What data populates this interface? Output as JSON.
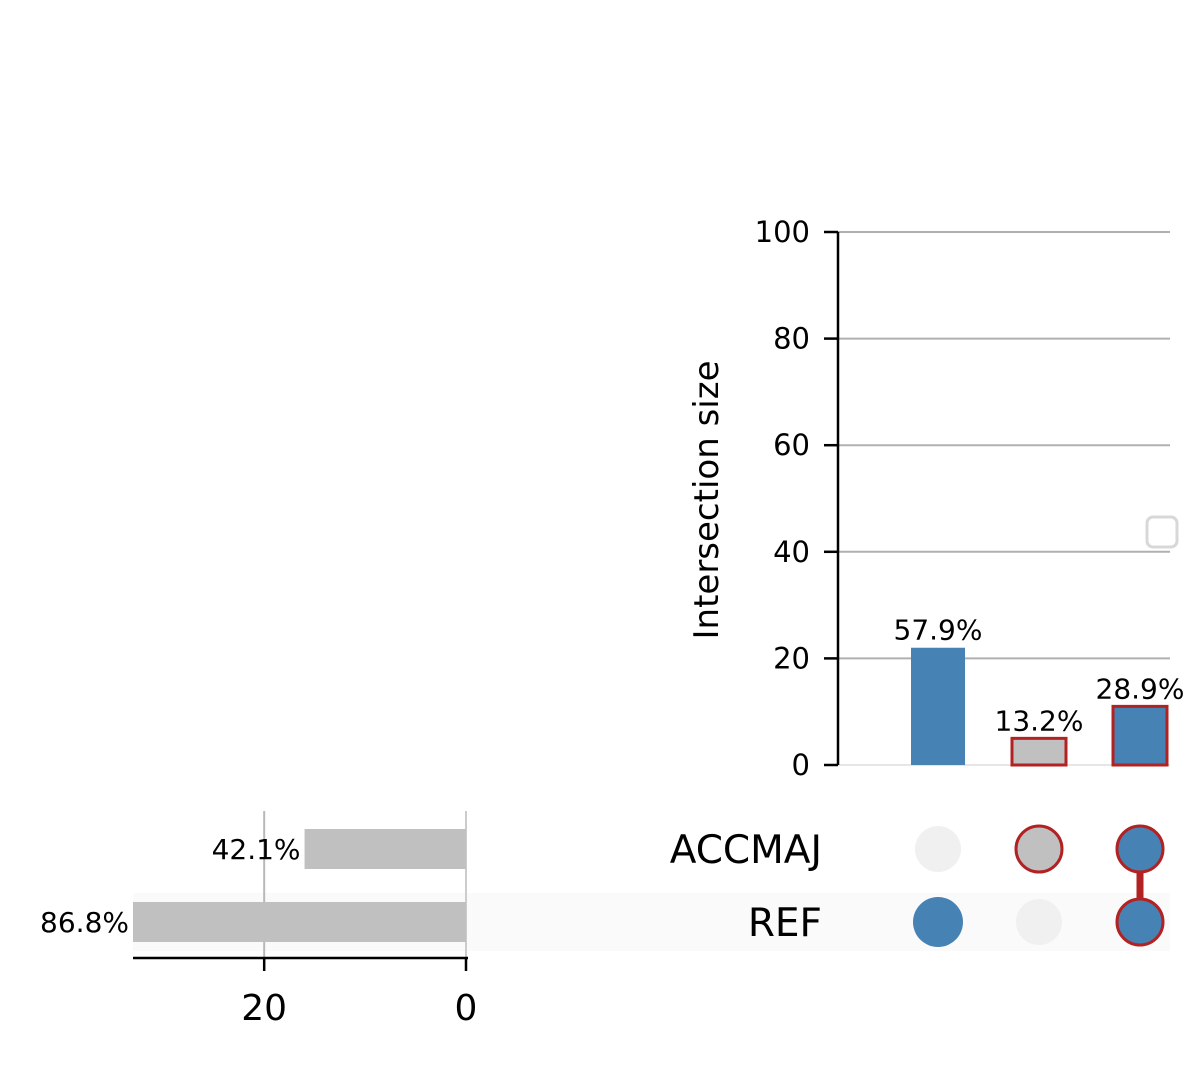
{
  "chart_data": {
    "type": "upset",
    "intersections": {
      "ylabel": "Intersection size",
      "ylim": [
        0,
        100
      ],
      "yticks": [
        0,
        20,
        40,
        60,
        80,
        100
      ],
      "grid": true,
      "bars": [
        {
          "sets": [
            "REF"
          ],
          "value": 22,
          "label": "57.9%",
          "highlighted": false
        },
        {
          "sets": [
            "ACCMAJ"
          ],
          "value": 5,
          "label": "13.2%",
          "highlighted": true
        },
        {
          "sets": [
            "ACCMAJ",
            "REF"
          ],
          "value": 11,
          "label": "28.9%",
          "highlighted": true
        }
      ]
    },
    "set_sizes": {
      "xticks": [
        20,
        0
      ],
      "xlim": [
        0,
        33
      ],
      "sets": [
        {
          "name": "ACCMAJ",
          "value": 16,
          "label": "42.1%"
        },
        {
          "name": "REF",
          "value": 33,
          "label": "86.8%"
        }
      ]
    },
    "colors": {
      "active": "#4682b4",
      "highlight_fill": "#c0c0c0",
      "highlight_edge": "#b22222",
      "inactive_dot": "#f0f0f0",
      "set_bar": "#c0c0c0",
      "grid": "#b0b0b0"
    },
    "legend": {
      "placement": "right",
      "entries": []
    }
  }
}
